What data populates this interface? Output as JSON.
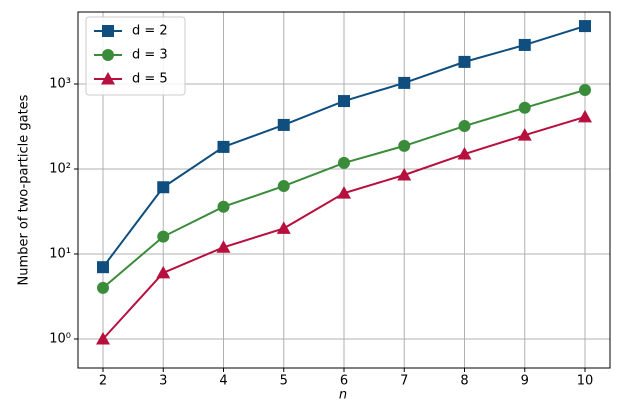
{
  "chart_data": {
    "type": "line",
    "log_y": true,
    "grid": true,
    "legend": "upper left",
    "xlabel": "n",
    "ylabel": "Number of two-particle gates",
    "x": [
      2,
      3,
      4,
      5,
      6,
      7,
      8,
      9,
      10
    ],
    "xlim": [
      1.585,
      10.415
    ],
    "xticks": [
      2,
      3,
      4,
      5,
      6,
      7,
      8,
      9,
      10
    ],
    "ylim": [
      0.456,
      7030
    ],
    "yticks": [
      {
        "value": 1,
        "label": "10⁰"
      },
      {
        "value": 10,
        "label": "10¹"
      },
      {
        "value": 100,
        "label": "10²"
      },
      {
        "value": 1000,
        "label": "10³"
      }
    ],
    "series": [
      {
        "name": "d = 2",
        "color": "#0f4e7e",
        "marker": "square",
        "values": [
          7,
          61,
          182,
          330,
          630,
          1030,
          1820,
          2880,
          4800
        ]
      },
      {
        "name": "d = 3",
        "color": "#3a8c3a",
        "marker": "circle",
        "values": [
          4,
          16,
          36,
          63,
          118,
          187,
          320,
          525,
          850
        ]
      },
      {
        "name": "d = 5",
        "color": "#b7103f",
        "marker": "triangle",
        "values": [
          1,
          6,
          12,
          20,
          52,
          85,
          150,
          250,
          410
        ]
      }
    ]
  }
}
